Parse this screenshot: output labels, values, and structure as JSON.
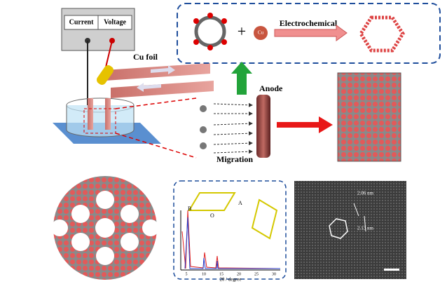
{
  "power_supply": {
    "labels": [
      "Current",
      "Voltage"
    ]
  },
  "cu_foil": "Cu foil",
  "reaction": {
    "plus": "+",
    "metal": "Cu",
    "process": "Electrochemical"
  },
  "anode": "Anode",
  "migration": "Migration",
  "xrd": {
    "axes": [
      "B",
      "A",
      "O"
    ],
    "xlabel": "2θ / degree",
    "xticks": [
      "5",
      "10",
      "15",
      "20",
      "25",
      "30"
    ]
  },
  "tem": {
    "spacings": [
      "2.06 nm",
      "2.13 nm"
    ]
  }
}
